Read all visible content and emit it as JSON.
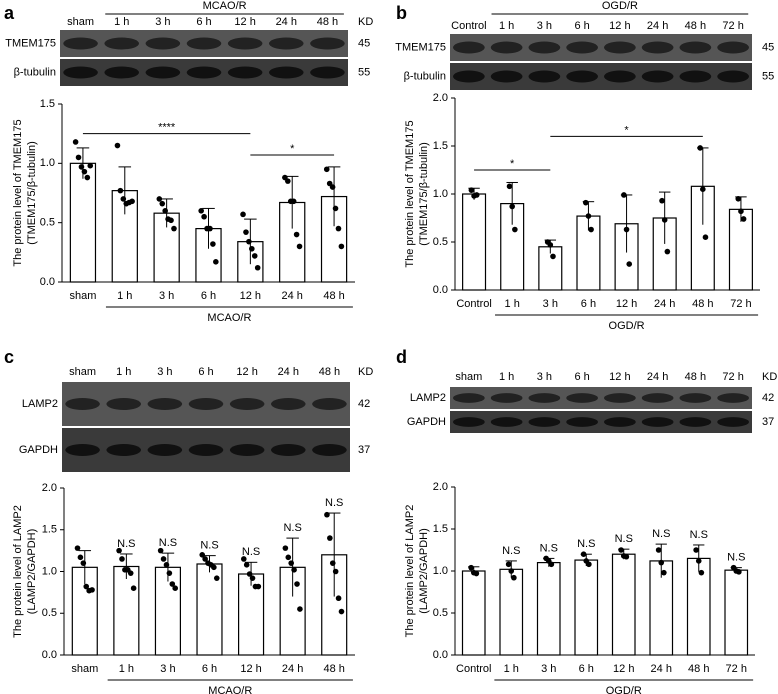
{
  "chart_data": [
    {
      "type": "bar",
      "panel": "a",
      "blot": {
        "group": "MCAO/R",
        "kd": "KD",
        "lanes": [
          "sham",
          "1 h",
          "3 h",
          "6 h",
          "12 h",
          "24 h",
          "48 h"
        ],
        "rows": [
          {
            "protein": "TMEM175",
            "kd": "45"
          },
          {
            "protein": "β-tubulin",
            "kd": "55"
          }
        ]
      },
      "y_label": [
        "The protein level of TMEM175",
        "(TMEM175/β-tubulin)"
      ],
      "group_label": "MCAO/R",
      "categories": [
        "sham",
        "1 h",
        "3 h",
        "6 h",
        "12 h",
        "24 h",
        "48 h"
      ],
      "values": [
        1.0,
        0.77,
        0.58,
        0.45,
        0.34,
        0.67,
        0.72
      ],
      "errors": [
        0.13,
        0.2,
        0.12,
        0.17,
        0.19,
        0.22,
        0.25
      ],
      "points": [
        [
          1.18,
          1.05,
          0.97,
          0.93,
          0.88,
          0.98
        ],
        [
          1.15,
          0.77,
          0.7,
          0.66,
          0.67,
          0.68
        ],
        [
          0.7,
          0.66,
          0.6,
          0.53,
          0.52,
          0.45
        ],
        [
          0.6,
          0.55,
          0.45,
          0.45,
          0.32,
          0.17
        ],
        [
          0.57,
          0.42,
          0.34,
          0.28,
          0.22,
          0.12
        ],
        [
          0.88,
          0.85,
          0.68,
          0.68,
          0.4,
          0.3
        ],
        [
          0.95,
          0.83,
          0.8,
          0.62,
          0.45,
          0.3
        ]
      ],
      "significance": [
        {
          "from": 0,
          "to": 4,
          "y": 1.25,
          "label": "****"
        },
        {
          "from": 4,
          "to": 6,
          "y": 1.07,
          "label": "*"
        }
      ],
      "ylim": [
        0,
        1.5
      ],
      "yticks": [
        {
          "value": 0,
          "label": "0.0"
        },
        {
          "value": 0.5,
          "label": "0.5"
        },
        {
          "value": 1,
          "label": "1.0"
        },
        {
          "value": 1.5,
          "label": "1.5"
        }
      ]
    },
    {
      "type": "bar",
      "panel": "b",
      "blot": {
        "group": "OGD/R",
        "lanes": [
          "Control",
          "1 h",
          "3 h",
          "6 h",
          "12 h",
          "24 h",
          "48 h",
          "72 h"
        ],
        "rows": [
          {
            "protein": "TMEM175",
            "kd": "45"
          },
          {
            "protein": "β-tubulin",
            "kd": "55"
          }
        ]
      },
      "y_label": [
        "The protein level of TMEM175",
        "(TMEM175/β-tubulin)"
      ],
      "group_label": "OGD/R",
      "categories": [
        "Control",
        "1 h",
        "3 h",
        "6 h",
        "12 h",
        "24 h",
        "48 h",
        "72 h"
      ],
      "values": [
        1.0,
        0.9,
        0.45,
        0.77,
        0.69,
        0.75,
        1.08,
        0.84
      ],
      "errors": [
        0.06,
        0.22,
        0.07,
        0.15,
        0.3,
        0.27,
        0.4,
        0.13
      ],
      "points": [
        [
          1.04,
          0.98,
          0.99
        ],
        [
          1.08,
          0.87,
          0.63
        ],
        [
          0.5,
          0.47,
          0.35
        ],
        [
          0.91,
          0.77,
          0.63
        ],
        [
          0.99,
          0.63,
          0.27
        ],
        [
          0.93,
          0.73,
          0.4
        ],
        [
          1.48,
          1.05,
          0.55
        ],
        [
          0.95,
          0.82,
          0.74
        ]
      ],
      "significance": [
        {
          "from": 0,
          "to": 2,
          "y": 1.25,
          "label": "*"
        },
        {
          "from": 2,
          "to": 6,
          "y": 1.6,
          "label": "*"
        }
      ],
      "ylim": [
        0,
        2
      ],
      "yticks": [
        {
          "value": 0,
          "label": "0.0"
        },
        {
          "value": 0.5,
          "label": "0.5"
        },
        {
          "value": 1,
          "label": "1.0"
        },
        {
          "value": 1.5,
          "label": "1.5"
        },
        {
          "value": 2,
          "label": "2.0"
        }
      ]
    },
    {
      "type": "bar",
      "panel": "c",
      "blot": {
        "kd": "KD",
        "lanes": [
          "sham",
          "1 h",
          "3 h",
          "6 h",
          "12 h",
          "24 h",
          "48 h"
        ],
        "rows": [
          {
            "protein": "LAMP2",
            "kd": "42"
          },
          {
            "protein": "GAPDH",
            "kd": "37"
          }
        ]
      },
      "y_label": [
        "The protein level of LAMP2",
        "(LAMP2/GAPDH)"
      ],
      "group_label": "MCAO/R",
      "categories": [
        "sham",
        "1 h",
        "3 h",
        "6 h",
        "12 h",
        "24 h",
        "48 h"
      ],
      "values": [
        1.05,
        1.06,
        1.05,
        1.09,
        0.97,
        1.05,
        1.2
      ],
      "errors": [
        0.2,
        0.15,
        0.17,
        0.1,
        0.14,
        0.35,
        0.5
      ],
      "points": [
        [
          1.28,
          1.17,
          1.1,
          0.82,
          0.77,
          0.78
        ],
        [
          1.25,
          1.15,
          1.02,
          1.02,
          0.98,
          0.8
        ],
        [
          1.25,
          1.15,
          1.08,
          0.98,
          0.85,
          0.8
        ],
        [
          1.2,
          1.15,
          1.1,
          1.08,
          1.05,
          0.92
        ],
        [
          1.15,
          1.08,
          0.97,
          0.92,
          0.82,
          0.82
        ],
        [
          1.28,
          1.17,
          1.1,
          1.02,
          0.85,
          0.55
        ],
        [
          1.68,
          1.4,
          1.1,
          1.0,
          0.68,
          0.52
        ]
      ],
      "labels": [
        null,
        "N.S",
        "N.S",
        "N.S",
        "N.S",
        "N.S",
        "N.S"
      ],
      "ylim": [
        0,
        2
      ],
      "yticks": [
        {
          "value": 0,
          "label": "0.0"
        },
        {
          "value": 0.5,
          "label": "0.5"
        },
        {
          "value": 1,
          "label": "1.0"
        },
        {
          "value": 1.5,
          "label": "1.5"
        },
        {
          "value": 2,
          "label": "2.0"
        }
      ]
    },
    {
      "type": "bar",
      "panel": "d",
      "blot": {
        "kd": "KD",
        "lanes": [
          "sham",
          "1 h",
          "3 h",
          "6 h",
          "12 h",
          "24 h",
          "48 h",
          "72 h"
        ],
        "rows": [
          {
            "protein": "LAMP2",
            "kd": "42"
          },
          {
            "protein": "GAPDH",
            "kd": "37"
          }
        ]
      },
      "y_label": [
        "The protein level of LAMP2",
        "(LAMP2/GAPDH)"
      ],
      "group_label": "OGD/R",
      "categories": [
        "Control",
        "1 h",
        "3 h",
        "6 h",
        "12 h",
        "24 h",
        "48 h",
        "72 h"
      ],
      "values": [
        1.0,
        1.02,
        1.1,
        1.13,
        1.2,
        1.12,
        1.15,
        1.01
      ],
      "errors": [
        0.05,
        0.1,
        0.05,
        0.07,
        0.06,
        0.2,
        0.16,
        0.03
      ],
      "points": [
        [
          1.04,
          0.98,
          0.97
        ],
        [
          1.08,
          1.0,
          0.92
        ],
        [
          1.15,
          1.12,
          1.08
        ],
        [
          1.2,
          1.12,
          1.08
        ],
        [
          1.25,
          1.18,
          1.17
        ],
        [
          1.25,
          1.1,
          0.98
        ],
        [
          1.25,
          1.12,
          0.98
        ],
        [
          1.04,
          1.0,
          0.99
        ]
      ],
      "labels": [
        null,
        "N.S",
        "N.S",
        "N.S",
        "N.S",
        "N.S",
        "N.S",
        "N.S"
      ],
      "ylim": [
        0,
        2
      ],
      "yticks": [
        {
          "value": 0,
          "label": "0.0"
        },
        {
          "value": 0.5,
          "label": "0.5"
        },
        {
          "value": 1,
          "label": "1.0"
        },
        {
          "value": 1.5,
          "label": "1.5"
        },
        {
          "value": 2,
          "label": "2.0"
        }
      ]
    }
  ]
}
